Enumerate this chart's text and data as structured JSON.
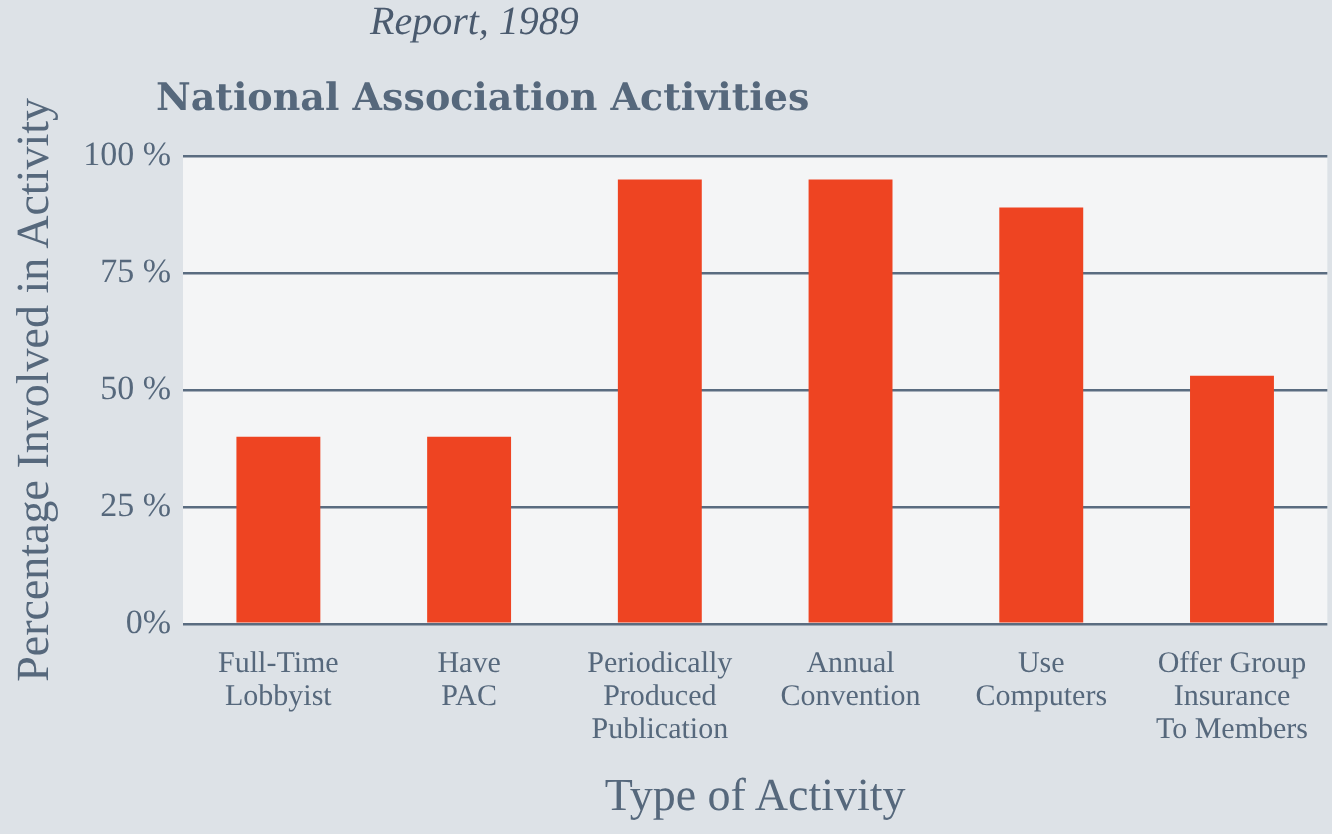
{
  "chart_data": {
    "type": "bar",
    "title": "National Association Activities",
    "xlabel": "Type of Activity",
    "ylabel": "Percentage Involved in Activity",
    "annotations": [
      "Report, 1989"
    ],
    "categories": [
      "Full-Time\nLobbyist",
      "Have\nPAC",
      "Periodically\nProduced\nPublication",
      "Annual\nConvention",
      "Use\nComputers",
      "Offer Group\nInsurance\nTo Members"
    ],
    "values": [
      40,
      40,
      95,
      95,
      89,
      53
    ],
    "color": "#ee4422",
    "ylim": [
      0,
      100
    ],
    "yticks": [
      {
        "value": 0,
        "label": "0%"
      },
      {
        "value": 25,
        "label": "25 %"
      },
      {
        "value": 50,
        "label": "50 %"
      },
      {
        "value": 75,
        "label": "75 %"
      },
      {
        "value": 100,
        "label": "100 %"
      }
    ],
    "grid": "y",
    "legend": false
  }
}
